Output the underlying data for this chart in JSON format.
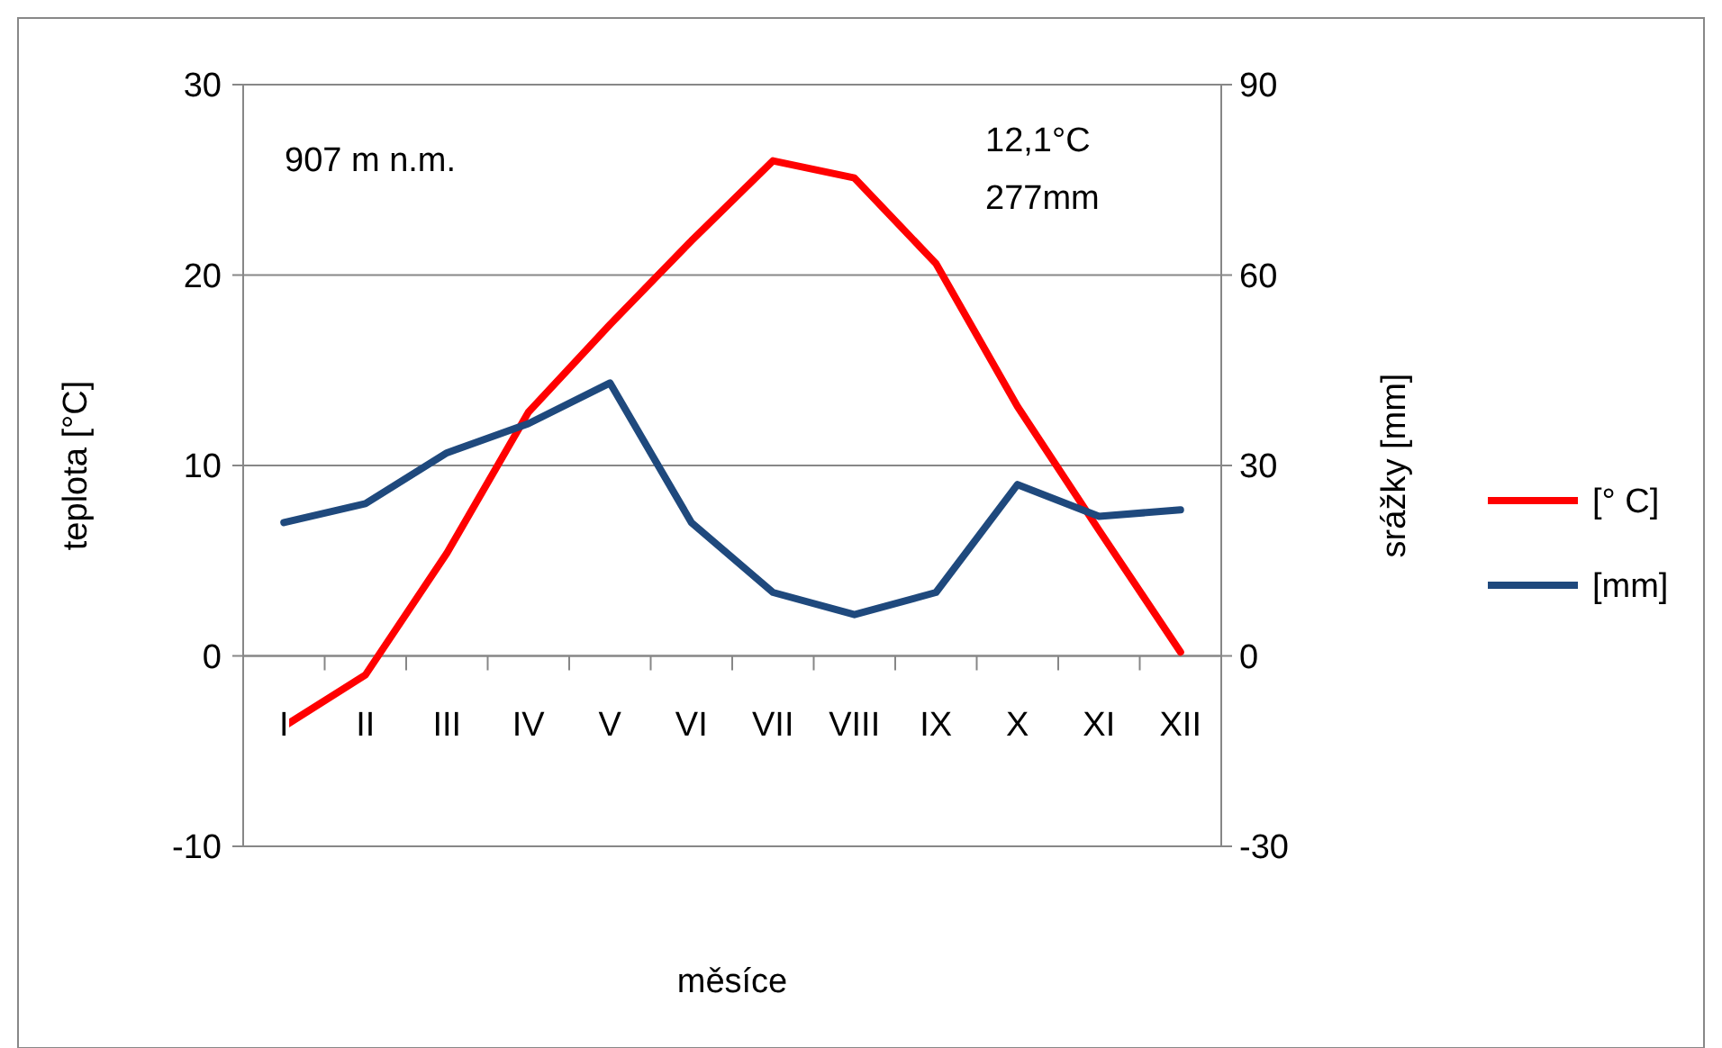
{
  "chart_data": {
    "type": "line",
    "xlabel": "měsíce",
    "ylabel": "teplota [°C]",
    "y2label": "srážky [mm]",
    "categories": [
      "I",
      "II",
      "III",
      "IV",
      "V",
      "VI",
      "VII",
      "VIII",
      "IX",
      "X",
      "XI",
      "XII"
    ],
    "series": [
      {
        "name": "[° C]",
        "color": "#ff0000",
        "values": [
          -3.7,
          -1,
          5.4,
          12.8,
          17.4,
          21.8,
          26,
          25.1,
          20.6,
          13.1,
          6.6,
          0.2
        ]
      },
      {
        "name": "[mm]",
        "color": "#1f497d",
        "axis": "y2",
        "values": [
          21,
          24,
          32,
          36.6,
          43,
          21,
          10,
          6.5,
          10,
          27,
          22,
          23
        ]
      }
    ],
    "ylim": [
      -10,
      30
    ],
    "yticks": [
      -10,
      0,
      10,
      20,
      30
    ],
    "y2lim": [
      -30,
      90
    ],
    "y2ticks": [
      -30,
      0,
      30,
      60,
      90
    ],
    "grid": "y",
    "legend": "right",
    "marker": "none",
    "line_style": "solid",
    "annotations": [
      "907 m n.m.",
      "12,1°C",
      "277mm"
    ]
  }
}
